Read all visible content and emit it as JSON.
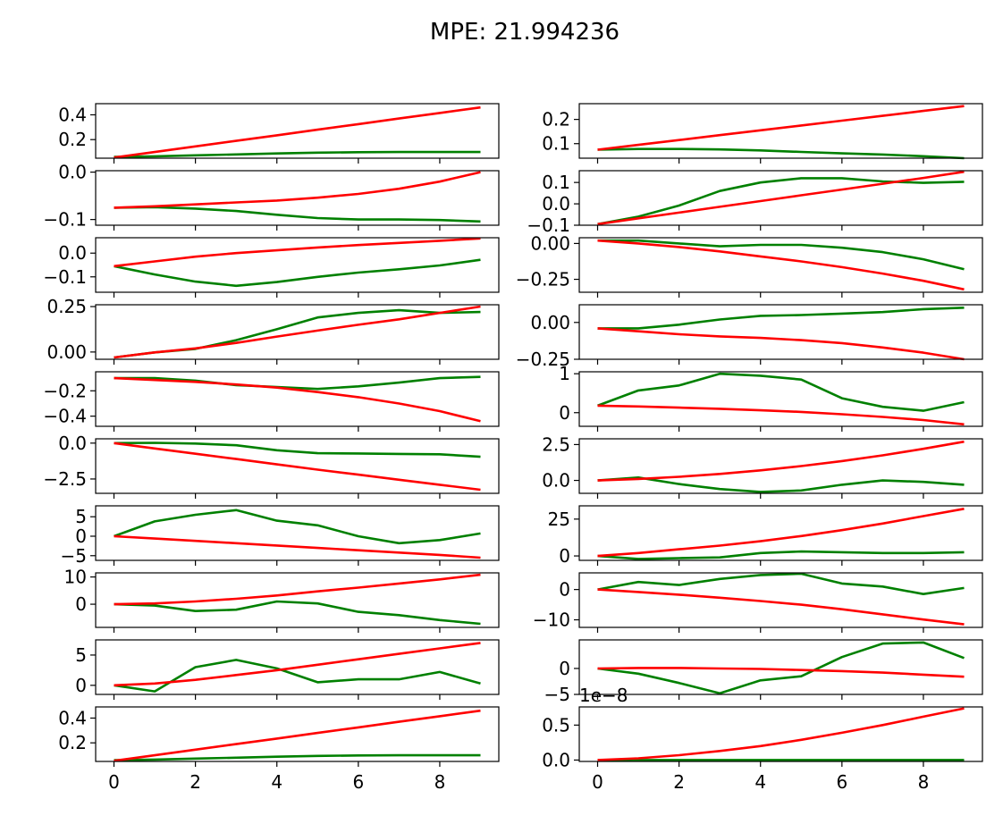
{
  "title": "MPE: 21.994236",
  "colors": {
    "pred": "#008000",
    "target": "#ff0000",
    "axes": "#000000"
  },
  "chart_data": {
    "type": "line",
    "layout": "10x2 grid of subplots",
    "title": "MPE: 21.994236",
    "x": [
      0,
      1,
      2,
      3,
      4,
      5,
      6,
      7,
      8,
      9
    ],
    "x_ticks": [
      0,
      2,
      4,
      6,
      8
    ],
    "x_tick_labels": [
      "0",
      "2",
      "4",
      "6",
      "8"
    ],
    "panels": [
      {
        "ylim": [
          0.05,
          0.49
        ],
        "yticks": [
          0.2,
          0.4
        ],
        "ytick_labels": [
          "0.2",
          "0.4"
        ],
        "series": [
          {
            "color": "green",
            "values": [
              0.06,
              0.065,
              0.073,
              0.08,
              0.088,
              0.095,
              0.098,
              0.1,
              0.1,
              0.1
            ]
          },
          {
            "color": "red",
            "values": [
              0.055,
              0.1,
              0.145,
              0.19,
              0.235,
              0.28,
              0.325,
              0.37,
              0.415,
              0.46
            ]
          }
        ]
      },
      {
        "ylim": [
          0.04,
          0.265
        ],
        "yticks": [
          0.1,
          0.2
        ],
        "ytick_labels": [
          "0.1",
          "0.2"
        ],
        "series": [
          {
            "color": "green",
            "values": [
              0.075,
              0.078,
              0.078,
              0.076,
              0.072,
              0.066,
              0.06,
              0.055,
              0.048,
              0.04
            ]
          },
          {
            "color": "red",
            "values": [
              0.075,
              0.095,
              0.115,
              0.135,
              0.155,
              0.175,
              0.195,
              0.215,
              0.235,
              0.255
            ]
          }
        ]
      },
      {
        "ylim": [
          -0.112,
          0.003
        ],
        "yticks": [
          -0.1,
          0.0
        ],
        "ytick_labels": [
          "−0.1",
          "0.0"
        ],
        "series": [
          {
            "color": "green",
            "values": [
              -0.075,
              -0.074,
              -0.077,
              -0.082,
              -0.09,
              -0.097,
              -0.1,
              -0.1,
              -0.101,
              -0.104
            ]
          },
          {
            "color": "red",
            "values": [
              -0.075,
              -0.072,
              -0.068,
              -0.064,
              -0.06,
              -0.054,
              -0.046,
              -0.035,
              -0.02,
              0.0
            ]
          }
        ]
      },
      {
        "ylim": [
          -0.1,
          0.155
        ],
        "yticks": [
          -0.1,
          0.0,
          0.1
        ],
        "ytick_labels": [
          "−0.1",
          "0.0",
          "0.1"
        ],
        "series": [
          {
            "color": "green",
            "values": [
              -0.095,
              -0.06,
              -0.008,
              0.06,
              0.1,
              0.12,
              0.12,
              0.105,
              0.098,
              0.103
            ]
          },
          {
            "color": "red",
            "values": [
              -0.095,
              -0.068,
              -0.041,
              -0.014,
              0.013,
              0.04,
              0.067,
              0.094,
              0.121,
              0.15
            ]
          }
        ]
      },
      {
        "ylim": [
          -0.165,
          0.065
        ],
        "yticks": [
          -0.1,
          0.0
        ],
        "ytick_labels": [
          "−0.1",
          "0.0"
        ],
        "series": [
          {
            "color": "green",
            "values": [
              -0.055,
              -0.09,
              -0.12,
              -0.138,
              -0.122,
              -0.1,
              -0.082,
              -0.068,
              -0.052,
              -0.028
            ]
          },
          {
            "color": "red",
            "values": [
              -0.055,
              -0.035,
              -0.015,
              0.0,
              0.012,
              0.024,
              0.034,
              0.043,
              0.052,
              0.062
            ]
          }
        ]
      },
      {
        "ylim": [
          -0.34,
          0.04
        ],
        "yticks": [
          -0.25,
          0.0
        ],
        "ytick_labels": [
          "−0.25",
          "0.00"
        ],
        "series": [
          {
            "color": "green",
            "values": [
              0.02,
              0.02,
              0.0,
              -0.02,
              -0.01,
              -0.01,
              -0.03,
              -0.06,
              -0.11,
              -0.18
            ]
          },
          {
            "color": "red",
            "values": [
              0.02,
              0.0,
              -0.025,
              -0.055,
              -0.09,
              -0.125,
              -0.165,
              -0.21,
              -0.26,
              -0.32
            ]
          }
        ]
      },
      {
        "ylim": [
          -0.04,
          0.26
        ],
        "yticks": [
          0.0,
          0.25
        ],
        "ytick_labels": [
          "0.00",
          "0.25"
        ],
        "series": [
          {
            "color": "green",
            "values": [
              -0.03,
              -0.002,
              0.017,
              0.065,
              0.125,
              0.19,
              0.215,
              0.23,
              0.215,
              0.22
            ]
          },
          {
            "color": "red",
            "values": [
              -0.03,
              -0.002,
              0.02,
              0.05,
              0.085,
              0.118,
              0.15,
              0.18,
              0.215,
              0.25
            ]
          }
        ]
      },
      {
        "ylim": [
          -0.25,
          0.12
        ],
        "yticks": [
          -0.25,
          0.0
        ],
        "ytick_labels": [
          "−0.25",
          "0.00"
        ],
        "series": [
          {
            "color": "green",
            "values": [
              -0.04,
              -0.04,
              -0.015,
              0.02,
              0.045,
              0.05,
              0.06,
              0.07,
              0.09,
              0.1
            ]
          },
          {
            "color": "red",
            "values": [
              -0.04,
              -0.06,
              -0.08,
              -0.095,
              -0.105,
              -0.12,
              -0.14,
              -0.17,
              -0.205,
              -0.25
            ]
          }
        ]
      },
      {
        "ylim": [
          -0.48,
          -0.05
        ],
        "yticks": [
          -0.4,
          -0.2
        ],
        "ytick_labels": [
          "−0.4",
          "−0.2"
        ],
        "series": [
          {
            "color": "green",
            "values": [
              -0.1,
              -0.1,
              -0.12,
              -0.155,
              -0.17,
              -0.185,
              -0.165,
              -0.135,
              -0.1,
              -0.09
            ]
          },
          {
            "color": "red",
            "values": [
              -0.1,
              -0.115,
              -0.13,
              -0.15,
              -0.175,
              -0.21,
              -0.25,
              -0.3,
              -0.36,
              -0.44
            ]
          }
        ]
      },
      {
        "ylim": [
          -0.35,
          1.05
        ],
        "yticks": [
          0,
          1
        ],
        "ytick_labels": [
          "0",
          "1"
        ],
        "series": [
          {
            "color": "green",
            "values": [
              0.18,
              0.57,
              0.7,
              1.0,
              0.95,
              0.85,
              0.37,
              0.15,
              0.05,
              0.27
            ]
          },
          {
            "color": "red",
            "values": [
              0.18,
              0.16,
              0.13,
              0.1,
              0.06,
              0.02,
              -0.04,
              -0.11,
              -0.19,
              -0.3
            ]
          }
        ]
      },
      {
        "ylim": [
          -3.5,
          0.3
        ],
        "yticks": [
          -2.5,
          0.0
        ],
        "ytick_labels": [
          "−2.5",
          "0.0"
        ],
        "series": [
          {
            "color": "green",
            "values": [
              0.0,
              0.02,
              -0.03,
              -0.15,
              -0.5,
              -0.7,
              -0.72,
              -0.75,
              -0.78,
              -0.95
            ]
          },
          {
            "color": "red",
            "values": [
              0.0,
              -0.37,
              -0.74,
              -1.11,
              -1.48,
              -1.85,
              -2.2,
              -2.55,
              -2.9,
              -3.25
            ]
          }
        ]
      },
      {
        "ylim": [
          -0.9,
          2.9
        ],
        "yticks": [
          0.0,
          2.5
        ],
        "ytick_labels": [
          "0.0",
          "2.5"
        ],
        "series": [
          {
            "color": "green",
            "values": [
              0.0,
              0.2,
              -0.25,
              -0.6,
              -0.8,
              -0.7,
              -0.3,
              0.0,
              -0.1,
              -0.3
            ]
          },
          {
            "color": "red",
            "values": [
              0.0,
              0.1,
              0.25,
              0.45,
              0.7,
              1.0,
              1.35,
              1.75,
              2.2,
              2.7
            ]
          }
        ]
      },
      {
        "ylim": [
          -6.2,
          7.8
        ],
        "yticks": [
          -5,
          0,
          5
        ],
        "ytick_labels": [
          "−5",
          "0",
          "5"
        ],
        "series": [
          {
            "color": "green",
            "values": [
              0.0,
              3.8,
              5.5,
              6.7,
              4.0,
              2.8,
              0.0,
              -1.8,
              -1.0,
              0.7
            ]
          },
          {
            "color": "red",
            "values": [
              0.0,
              -0.6,
              -1.2,
              -1.8,
              -2.4,
              -3.0,
              -3.6,
              -4.2,
              -4.8,
              -5.5
            ]
          }
        ]
      },
      {
        "ylim": [
          -3.0,
          34.0
        ],
        "yticks": [
          0,
          25
        ],
        "ytick_labels": [
          "0",
          "25"
        ],
        "series": [
          {
            "color": "green",
            "values": [
              0.0,
              -2.0,
              -1.5,
              -1.0,
              2.0,
              3.0,
              2.5,
              2.0,
              2.0,
              2.5
            ]
          },
          {
            "color": "red",
            "values": [
              0.0,
              2.0,
              4.5,
              7.0,
              10.0,
              13.5,
              17.5,
              22.0,
              27.0,
              32.0
            ]
          }
        ]
      },
      {
        "ylim": [
          -8.5,
          11.5
        ],
        "yticks": [
          0,
          10
        ],
        "ytick_labels": [
          "0",
          "10"
        ],
        "series": [
          {
            "color": "green",
            "values": [
              0.0,
              -0.5,
              -2.5,
              -2.0,
              1.0,
              0.3,
              -2.8,
              -4.0,
              -5.8,
              -7.2
            ]
          },
          {
            "color": "red",
            "values": [
              0.0,
              0.3,
              1.0,
              2.0,
              3.2,
              4.7,
              6.1,
              7.6,
              9.1,
              10.8
            ]
          }
        ]
      },
      {
        "ylim": [
          -12.5,
          5.5
        ],
        "yticks": [
          -10,
          0
        ],
        "ytick_labels": [
          "−10",
          "0"
        ],
        "series": [
          {
            "color": "green",
            "values": [
              0.0,
              2.5,
              1.5,
              3.5,
              4.8,
              5.2,
              2.0,
              1.0,
              -1.5,
              0.5
            ]
          },
          {
            "color": "red",
            "values": [
              0.0,
              -0.8,
              -1.7,
              -2.7,
              -3.8,
              -5.0,
              -6.5,
              -8.2,
              -9.9,
              -11.5
            ]
          }
        ]
      },
      {
        "ylim": [
          -1.5,
          7.5
        ],
        "yticks": [
          0,
          5
        ],
        "ytick_labels": [
          "0",
          "5"
        ],
        "series": [
          {
            "color": "green",
            "values": [
              0.0,
              -1.0,
              3.0,
              4.2,
              2.8,
              0.5,
              1.0,
              1.0,
              2.2,
              0.3
            ]
          },
          {
            "color": "red",
            "values": [
              0.0,
              0.3,
              0.9,
              1.7,
              2.5,
              3.4,
              4.3,
              5.2,
              6.1,
              7.0
            ]
          }
        ]
      },
      {
        "ylim": [
          -5.0,
          5.5
        ],
        "yticks": [
          -5,
          0
        ],
        "ytick_labels": [
          "−5",
          "0"
        ],
        "series": [
          {
            "color": "green",
            "values": [
              0.0,
              -1.0,
              -2.8,
              -4.8,
              -2.3,
              -1.5,
              2.2,
              4.8,
              5.0,
              2.0
            ]
          },
          {
            "color": "red",
            "values": [
              0.0,
              0.1,
              0.1,
              0.0,
              -0.1,
              -0.3,
              -0.5,
              -0.8,
              -1.2,
              -1.6
            ]
          }
        ]
      },
      {
        "ylim": [
          0.05,
          0.49
        ],
        "yticks": [
          0.2,
          0.4
        ],
        "ytick_labels": [
          "0.2",
          "0.4"
        ],
        "series": [
          {
            "color": "green",
            "values": [
              0.06,
              0.065,
              0.073,
              0.08,
              0.088,
              0.095,
              0.098,
              0.1,
              0.1,
              0.1
            ]
          },
          {
            "color": "red",
            "values": [
              0.055,
              0.1,
              0.145,
              0.19,
              0.235,
              0.28,
              0.325,
              0.37,
              0.415,
              0.46
            ]
          }
        ]
      },
      {
        "ylim": [
          -0.02,
          0.76
        ],
        "yticks": [
          0.0,
          0.5
        ],
        "ytick_labels": [
          "0.0",
          "0.5"
        ],
        "offset_label": "1e−8",
        "series": [
          {
            "color": "green",
            "values": [
              0,
              0,
              0,
              0,
              0,
              0,
              0,
              0,
              0,
              0
            ]
          },
          {
            "color": "red",
            "values": [
              0.0,
              0.025,
              0.07,
              0.13,
              0.2,
              0.29,
              0.39,
              0.5,
              0.62,
              0.74
            ]
          }
        ]
      }
    ]
  }
}
